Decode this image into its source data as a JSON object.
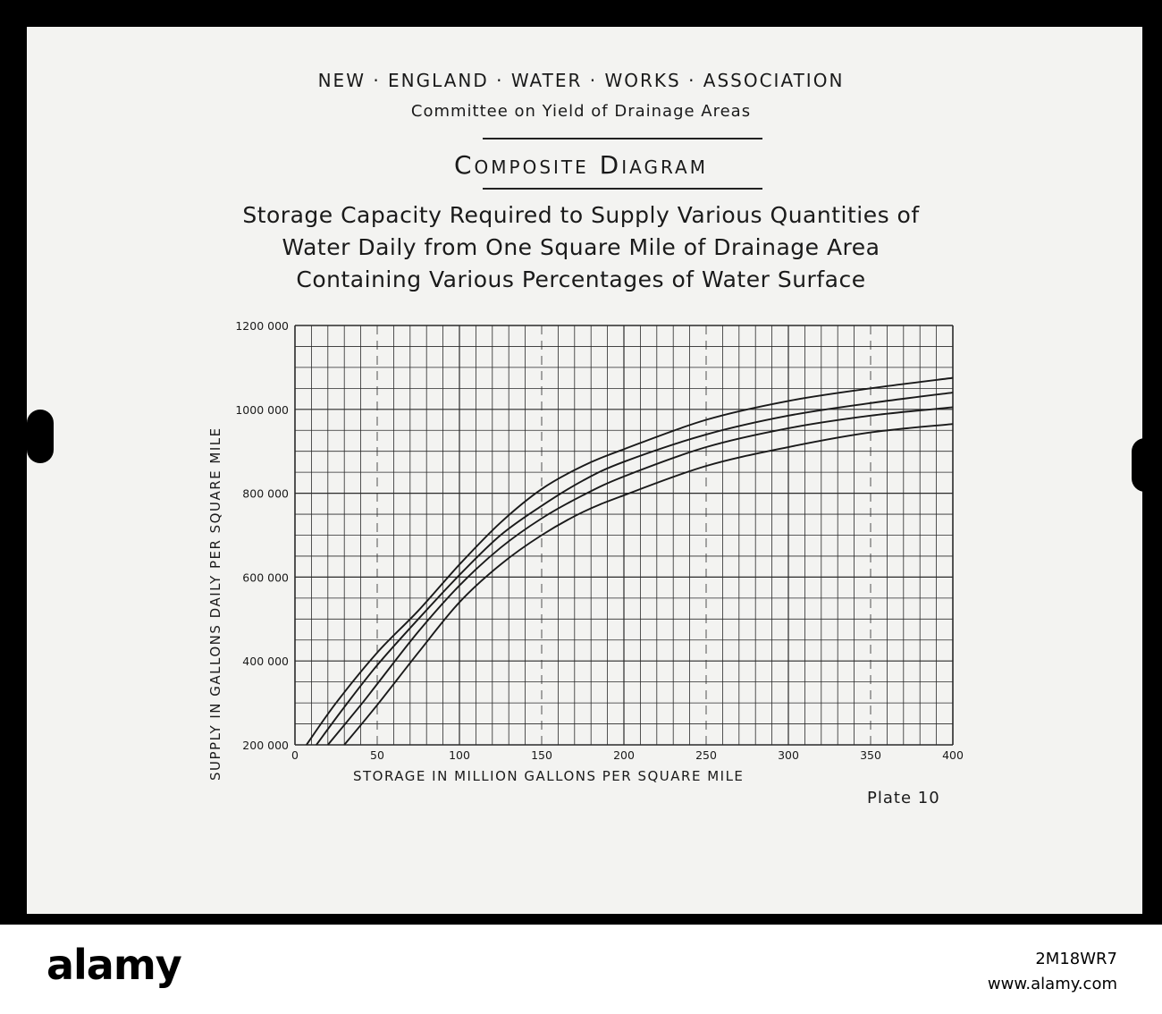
{
  "header": {
    "organization": "NEW · ENGLAND · WATER · WORKS · ASSOCIATION",
    "committee": "Committee on Yield of Drainage Areas",
    "diagram_title": "Composite Diagram",
    "subtitle_lines": [
      "Storage Capacity Required to Supply Various Quantities of",
      "Water Daily from One Square Mile of Drainage Area",
      "Containing Various Percentages of Water Surface"
    ]
  },
  "plate_label": "Plate 10",
  "watermark": {
    "logo": "alamy",
    "image_id": "2M18WR7",
    "url": "www.alamy.com"
  },
  "chart_data": {
    "type": "line",
    "title": "Composite Diagram",
    "xlabel": "STORAGE IN MILLION GALLONS PER SQUARE MILE",
    "ylabel": "SUPPLY IN GALLONS DAILY PER SQUARE MILE",
    "xlim": [
      0,
      400
    ],
    "ylim": [
      200000,
      1200000
    ],
    "x_ticks": [
      0,
      50,
      100,
      150,
      200,
      250,
      300,
      350,
      400
    ],
    "x_tick_labels": [
      "0",
      "50",
      "100",
      "150",
      "200",
      "250",
      "300",
      "350",
      "400"
    ],
    "y_ticks": [
      200000,
      400000,
      600000,
      800000,
      1000000,
      1200000
    ],
    "y_tick_labels": [
      "200 000",
      "400 000",
      "600 000",
      "800 000",
      "1000 000",
      "1200 000"
    ],
    "grid": true,
    "dashed_x_gridlines": [
      50,
      150,
      250,
      350
    ],
    "series": [
      {
        "x": [
          7,
          25,
          50,
          75,
          100,
          125,
          150,
          175,
          200,
          250,
          300,
          350,
          400
        ],
        "y": [
          200000,
          300000,
          420000,
          520000,
          630000,
          730000,
          810000,
          865000,
          905000,
          975000,
          1020000,
          1050000,
          1075000
        ]
      },
      {
        "x": [
          13,
          30,
          50,
          75,
          100,
          125,
          150,
          175,
          200,
          250,
          300,
          350,
          400
        ],
        "y": [
          200000,
          290000,
          390000,
          500000,
          605000,
          700000,
          770000,
          830000,
          875000,
          940000,
          985000,
          1015000,
          1040000
        ]
      },
      {
        "x": [
          20,
          40,
          50,
          75,
          100,
          125,
          150,
          175,
          200,
          250,
          300,
          350,
          400
        ],
        "y": [
          200000,
          295000,
          345000,
          470000,
          580000,
          670000,
          740000,
          795000,
          840000,
          910000,
          955000,
          985000,
          1005000
        ]
      },
      {
        "x": [
          30,
          50,
          75,
          100,
          125,
          150,
          175,
          200,
          250,
          300,
          350,
          400
        ],
        "y": [
          200000,
          295000,
          420000,
          540000,
          630000,
          700000,
          755000,
          795000,
          865000,
          910000,
          945000,
          965000
        ]
      }
    ],
    "colors": {
      "line": "#1a1a1a",
      "grid": "#2a2a2a",
      "paper": "#f3f3f1"
    }
  }
}
